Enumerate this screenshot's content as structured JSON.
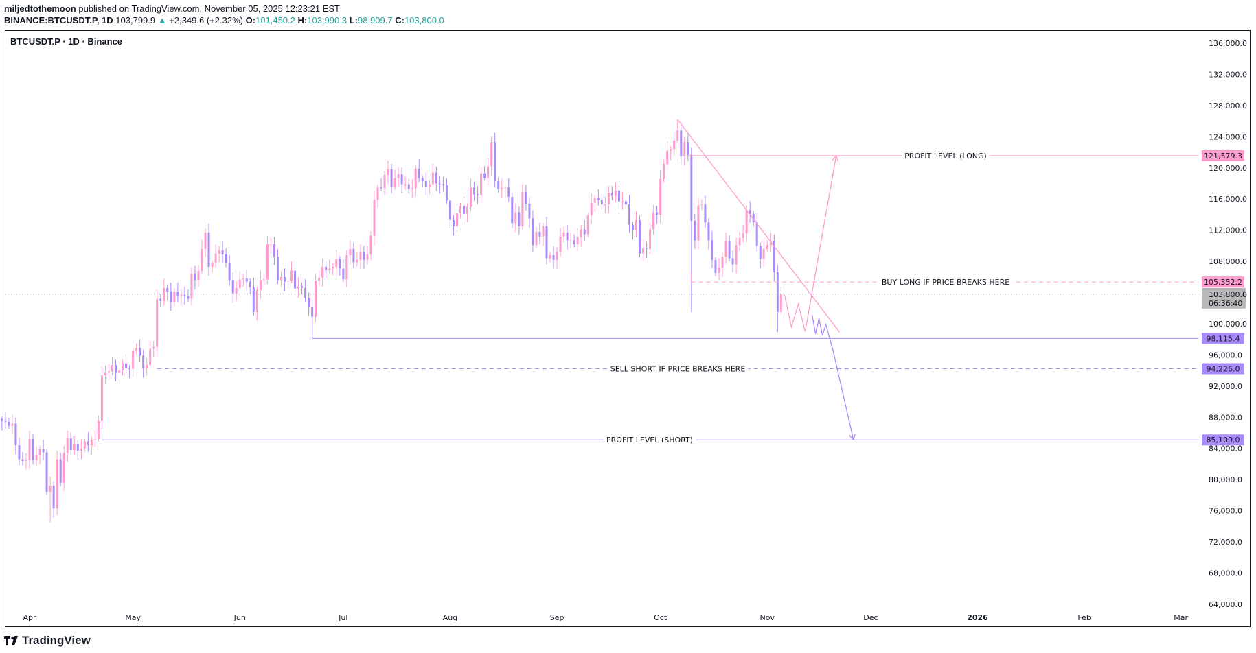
{
  "header": {
    "author": "miljedtothemoon",
    "published": "published on TradingView.com, November 05, 2025 12:23:21 EST",
    "symbol": "BINANCE:BTCUSDT.P, 1D",
    "last": "103,799.9",
    "change": "+2,349.6 (+2.32%)",
    "o_label": "O:",
    "o": "101,450.2",
    "h_label": "H:",
    "h": "103,990.3",
    "l_label": "L:",
    "l": "98,909.7",
    "c_label": "C:",
    "c": "103,800.0"
  },
  "chart_title": "BTCUSDT.P · 1D · Binance",
  "logo": "TradingView",
  "colors": {
    "bull": "#ff9ccd",
    "bear": "#a98bfa",
    "long": "#ff9ccd",
    "short": "#a98bfa",
    "current": "#b2b2b2"
  },
  "chart_data": {
    "type": "candlestick",
    "start_date": "2025-03-24",
    "interval": "1D",
    "closes": [
      87500,
      87400,
      86900,
      87200,
      84400,
      82600,
      82400,
      82500,
      85200,
      82500,
      83100,
      83900,
      83500,
      78400,
      79200,
      76300,
      82600,
      79600,
      83400,
      85300,
      83800,
      84500,
      83700,
      84000,
      84900,
      84400,
      85100,
      85200,
      87500,
      93400,
      93700,
      93900,
      94700,
      93700,
      94000,
      94900,
      94300,
      94200,
      96500,
      96900,
      95900,
      94300,
      94700,
      96800,
      97000,
      103200,
      102900,
      104600,
      104100,
      102800,
      104100,
      103500,
      103700,
      103500,
      103200,
      106400,
      105600,
      106800,
      109600,
      111700,
      107300,
      107800,
      109000,
      109400,
      108900,
      107800,
      105600,
      103900,
      104600,
      105700,
      105800,
      105400,
      104700,
      101500,
      104300,
      105600,
      105700,
      110200,
      110200,
      108600,
      105600,
      106000,
      105400,
      105500,
      106800,
      104500,
      104800,
      104600,
      103300,
      102100,
      100900,
      105500,
      105900,
      107300,
      106900,
      107100,
      107300,
      108300,
      107100,
      105700,
      108800,
      109600,
      107900,
      108200,
      109200,
      108200,
      108900,
      111300,
      115900,
      117500,
      117400,
      119100,
      119800,
      117600,
      118700,
      119200,
      117900,
      117900,
      117300,
      117400,
      119900,
      118700,
      118300,
      117600,
      117900,
      119400,
      118000,
      117900,
      117800,
      115800,
      113300,
      112500,
      114200,
      115100,
      114100,
      115000,
      117500,
      116600,
      116500,
      119300,
      118700,
      120200,
      123300,
      118300,
      117300,
      117400,
      117500,
      116300,
      112900,
      114300,
      112500,
      116900,
      115400,
      113500,
      110100,
      111800,
      111200,
      112500,
      108400,
      108800,
      108200,
      109200,
      111200,
      111700,
      110700,
      110700,
      110200,
      111100,
      112100,
      111500,
      113900,
      115500,
      116100,
      115900,
      115300,
      115300,
      116800,
      116400,
      117100,
      115700,
      115700,
      115300,
      112700,
      112000,
      113300,
      109000,
      109700,
      109600,
      112100,
      114300,
      114000,
      118600,
      120500,
      122200,
      122400,
      123500,
      124800,
      121500,
      123300,
      121700,
      113200,
      110700,
      115200,
      115300,
      113000,
      110700,
      108200,
      106500,
      107200,
      108600,
      110600,
      108400,
      107600,
      110100,
      111000,
      111600,
      114600,
      114100,
      113000,
      110000,
      108300,
      109600,
      110100,
      110600,
      106600,
      101500,
      103800
    ],
    "extremes": [
      {
        "date": "2025-04-07",
        "low": 74500
      },
      {
        "date": "2025-06-22",
        "low": 98200
      },
      {
        "date": "2025-08-14",
        "high": 124500
      },
      {
        "date": "2025-10-06",
        "high": 126200
      },
      {
        "date": "2025-10-10",
        "low": 101500
      },
      {
        "date": "2025-11-04",
        "low": 98900
      }
    ],
    "y_ticks": [
      136000,
      132000,
      128000,
      124000,
      120000,
      116000,
      112000,
      108000,
      100000,
      96000,
      92000,
      88000,
      84000,
      80000,
      76000,
      72000,
      68000,
      64000
    ],
    "y_tick_labels": [
      "136,000.0",
      "132,000.0",
      "128,000.0",
      "124,000.0",
      "120,000.0",
      "116,000.0",
      "112,000.0",
      "108,000.0",
      "100,000.0",
      "96,000.0",
      "92,000.0",
      "88,000.0",
      "84,000.0",
      "80,000.0",
      "76,000.0",
      "72,000.0",
      "68,000.0",
      "64,000.0"
    ],
    "ylim": [
      62000,
      137500
    ],
    "x_ticks": [
      {
        "date": "2025-04-01",
        "label": "Apr"
      },
      {
        "date": "2025-05-01",
        "label": "May"
      },
      {
        "date": "2025-06-01",
        "label": "Jun"
      },
      {
        "date": "2025-07-01",
        "label": "Jul"
      },
      {
        "date": "2025-08-01",
        "label": "Aug"
      },
      {
        "date": "2025-09-01",
        "label": "Sep"
      },
      {
        "date": "2025-10-01",
        "label": "Oct"
      },
      {
        "date": "2025-11-01",
        "label": "Nov"
      },
      {
        "date": "2025-12-01",
        "label": "Dec"
      },
      {
        "date": "2026-01-01",
        "label": "2026"
      },
      {
        "date": "2026-02-01",
        "label": "Feb"
      },
      {
        "date": "2026-03-01",
        "label": "Mar"
      }
    ],
    "levels": [
      {
        "name": "profit-long",
        "price": 121579.3,
        "tag": "121,579.3",
        "label": "PROFIT LEVEL (LONG)",
        "style": "solid",
        "color": "long",
        "from": "2025-10-09"
      },
      {
        "name": "buy-long",
        "price": 105352.2,
        "tag": "105,352.2",
        "label": "BUY LONG IF PRICE BREAKS HERE",
        "style": "dashed",
        "color": "long",
        "from": "2025-10-10"
      },
      {
        "name": "support",
        "price": 98115.4,
        "tag": "98,115.4",
        "label": "",
        "style": "solid",
        "color": "short",
        "from": "2025-06-22"
      },
      {
        "name": "sell-short",
        "price": 94226.0,
        "tag": "94,226.0",
        "label": "SELL SHORT IF PRICE BREAKS HERE",
        "style": "dashed",
        "color": "short",
        "from": "2025-05-08"
      },
      {
        "name": "profit-short",
        "price": 85100.0,
        "tag": "85,100.0",
        "label": "PROFIT LEVEL (SHORT)",
        "style": "solid",
        "color": "short",
        "from": "2025-04-22"
      }
    ],
    "current_price": {
      "price": 103800.0,
      "tag": "103,800.0",
      "countdown": "06:36:40"
    },
    "trendline": {
      "from": {
        "date": "2025-10-06",
        "price": 126200
      },
      "to": {
        "date": "2025-11-22",
        "price": 98900
      }
    },
    "long_path": [
      {
        "date": "2025-11-06",
        "price": 103700
      },
      {
        "date": "2025-11-08",
        "price": 99600
      },
      {
        "date": "2025-11-10",
        "price": 102500
      },
      {
        "date": "2025-11-12",
        "price": 99000
      },
      {
        "date": "2025-11-21",
        "price": 121579.3
      }
    ],
    "short_path": [
      {
        "date": "2025-11-14",
        "price": 101200
      },
      {
        "date": "2025-11-15",
        "price": 98700
      },
      {
        "date": "2025-11-16",
        "price": 100700
      },
      {
        "date": "2025-11-17",
        "price": 98500
      },
      {
        "date": "2025-11-18",
        "price": 99900
      },
      {
        "date": "2025-11-20",
        "price": 96700
      },
      {
        "date": "2025-11-26",
        "price": 85100
      }
    ]
  }
}
